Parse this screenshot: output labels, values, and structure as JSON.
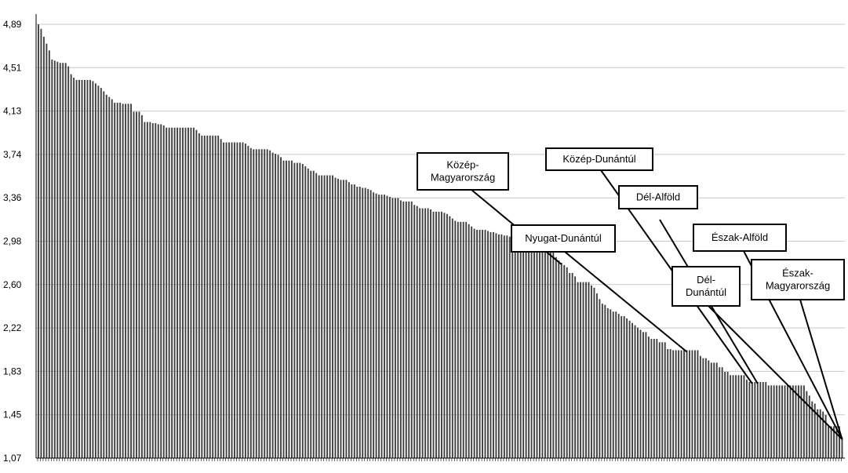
{
  "chart_data": {
    "type": "bar",
    "title": "",
    "xlabel": "",
    "ylabel": "",
    "ylim": [
      1.07,
      4.89
    ],
    "yticks": [
      "1,07",
      "1,45",
      "1,83",
      "2,22",
      "2,60",
      "2,98",
      "3,36",
      "3,74",
      "4,13",
      "4,51",
      "4,89"
    ],
    "grid": true,
    "bar_color": "#404040",
    "grid_color": "#c8c8c8",
    "values": [
      4.89,
      4.85,
      4.78,
      4.72,
      4.66,
      4.58,
      4.57,
      4.56,
      4.55,
      4.55,
      4.55,
      4.52,
      4.45,
      4.42,
      4.4,
      4.4,
      4.4,
      4.4,
      4.4,
      4.4,
      4.39,
      4.37,
      4.35,
      4.33,
      4.3,
      4.27,
      4.25,
      4.23,
      4.2,
      4.2,
      4.2,
      4.19,
      4.19,
      4.19,
      4.19,
      4.12,
      4.12,
      4.12,
      4.09,
      4.03,
      4.03,
      4.03,
      4.02,
      4.02,
      4.01,
      4.01,
      4.0,
      3.98,
      3.98,
      3.98,
      3.98,
      3.98,
      3.98,
      3.98,
      3.98,
      3.98,
      3.98,
      3.98,
      3.96,
      3.93,
      3.91,
      3.91,
      3.91,
      3.91,
      3.91,
      3.91,
      3.91,
      3.88,
      3.85,
      3.85,
      3.85,
      3.85,
      3.85,
      3.85,
      3.85,
      3.85,
      3.84,
      3.82,
      3.8,
      3.79,
      3.79,
      3.79,
      3.79,
      3.79,
      3.79,
      3.78,
      3.76,
      3.75,
      3.74,
      3.72,
      3.69,
      3.69,
      3.69,
      3.69,
      3.67,
      3.67,
      3.67,
      3.66,
      3.64,
      3.62,
      3.6,
      3.6,
      3.58,
      3.56,
      3.56,
      3.56,
      3.56,
      3.56,
      3.56,
      3.54,
      3.53,
      3.52,
      3.52,
      3.52,
      3.5,
      3.48,
      3.48,
      3.46,
      3.46,
      3.45,
      3.45,
      3.44,
      3.43,
      3.41,
      3.4,
      3.39,
      3.39,
      3.39,
      3.38,
      3.37,
      3.36,
      3.36,
      3.36,
      3.34,
      3.33,
      3.33,
      3.33,
      3.33,
      3.3,
      3.29,
      3.27,
      3.27,
      3.27,
      3.27,
      3.26,
      3.24,
      3.24,
      3.24,
      3.24,
      3.23,
      3.22,
      3.2,
      3.18,
      3.16,
      3.15,
      3.15,
      3.15,
      3.15,
      3.13,
      3.11,
      3.09,
      3.08,
      3.08,
      3.08,
      3.08,
      3.07,
      3.06,
      3.06,
      3.05,
      3.04,
      3.04,
      3.03,
      3.03,
      3.02,
      3.02,
      3.02,
      3.02,
      3.01,
      3.01,
      2.96,
      2.94,
      2.92,
      2.9,
      2.9,
      2.89,
      2.89,
      2.89,
      2.88,
      2.88,
      2.88,
      2.84,
      2.81,
      2.79,
      2.77,
      2.75,
      2.7,
      2.7,
      2.67,
      2.62,
      2.62,
      2.62,
      2.62,
      2.62,
      2.59,
      2.57,
      2.52,
      2.47,
      2.43,
      2.42,
      2.39,
      2.38,
      2.36,
      2.36,
      2.34,
      2.32,
      2.32,
      2.3,
      2.28,
      2.26,
      2.24,
      2.22,
      2.2,
      2.18,
      2.18,
      2.14,
      2.12,
      2.12,
      2.12,
      2.09,
      2.09,
      2.09,
      2.03,
      2.03,
      2.02,
      2.02,
      2.02,
      2.02,
      2.02,
      2.02,
      2.02,
      2.02,
      2.02,
      2.02,
      1.97,
      1.95,
      1.95,
      1.93,
      1.91,
      1.91,
      1.91,
      1.87,
      1.87,
      1.83,
      1.83,
      1.8,
      1.8,
      1.8,
      1.8,
      1.8,
      1.8,
      1.76,
      1.74,
      1.74,
      1.74,
      1.74,
      1.74,
      1.74,
      1.74,
      1.71,
      1.71,
      1.71,
      1.71,
      1.71,
      1.71,
      1.71,
      1.71,
      1.71,
      1.71,
      1.71,
      1.71,
      1.71,
      1.71,
      1.66,
      1.62,
      1.57,
      1.55,
      1.5,
      1.5,
      1.48,
      1.45,
      1.35,
      1.35,
      1.35,
      1.35,
      1.35,
      1.25
    ],
    "annotations": [
      {
        "text": "Közép-\nMagyarország",
        "bar_index": 192
      },
      {
        "text": "Közép-Dunántúl",
        "bar_index": 262
      },
      {
        "text": "Dél-Alföld",
        "bar_index": 264
      },
      {
        "text": "Nyugat-Dunántúl",
        "bar_index": 238
      },
      {
        "text": "Észak-Alföld",
        "bar_index": 303
      },
      {
        "text": "Dél-\nDunántúl",
        "bar_index": 300
      },
      {
        "text": "Észak-\nMagyarország",
        "bar_index": 326
      }
    ]
  }
}
